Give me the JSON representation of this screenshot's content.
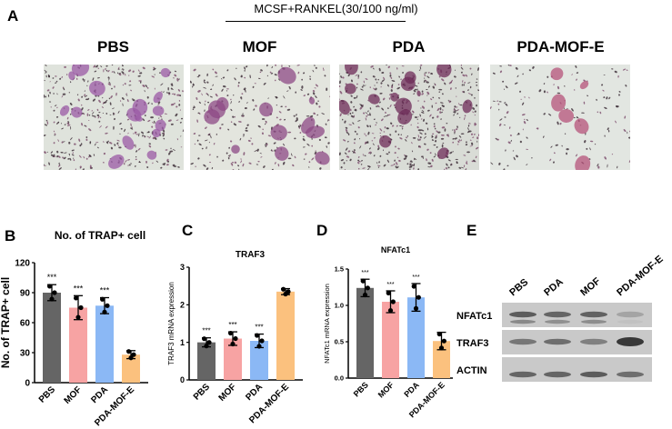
{
  "panel_a": {
    "letter": "A",
    "condition": "MCSF+RANKEL(30/100 ng/ml)",
    "images": [
      {
        "label": "PBS",
        "bg": "#dfe3dc",
        "density": "high",
        "stain": "#9b5aa6"
      },
      {
        "label": "MOF",
        "bg": "#e3e5de",
        "density": "medium",
        "stain": "#8d4a86"
      },
      {
        "label": "PDA",
        "bg": "#d9dcd6",
        "density": "very-high",
        "stain": "#6e2c58"
      },
      {
        "label": "PDA-MOF-E",
        "bg": "#e2e6e1",
        "density": "low",
        "stain": "#b5537a"
      }
    ]
  },
  "chart_data": [
    {
      "panel": "B",
      "type": "bar",
      "title": "No. of TRAP+ cell",
      "xlabel": "",
      "ylabel": "No. of TRAP+ cell",
      "categories": [
        "PBS",
        "MOF",
        "PDA",
        "PDA-MOF-E"
      ],
      "values": [
        90,
        75,
        77,
        28
      ],
      "error": [
        8,
        12,
        8,
        4
      ],
      "significance": [
        "***",
        "***",
        "***",
        ""
      ],
      "ylim": [
        0,
        120
      ],
      "yticks": [
        "0",
        "30",
        "60",
        "90",
        "120"
      ],
      "colors": [
        "#656565",
        "#f7a3a3",
        "#8bb8f5",
        "#fbc17e"
      ],
      "grid": false
    },
    {
      "panel": "C",
      "type": "bar",
      "title": "TRAF3",
      "xlabel": "",
      "ylabel": "TRAF3 mRNA expression",
      "categories": [
        "PBS",
        "MOF",
        "PDA",
        "PDA-MOF-E"
      ],
      "values": [
        1.0,
        1.1,
        1.04,
        2.35
      ],
      "error": [
        0.12,
        0.18,
        0.18,
        0.08
      ],
      "significance": [
        "***",
        "***",
        "***",
        ""
      ],
      "ylim": [
        0,
        3
      ],
      "yticks": [
        "0",
        "1",
        "2",
        "3"
      ],
      "colors": [
        "#656565",
        "#f7a3a3",
        "#8bb8f5",
        "#fbc17e"
      ],
      "grid": false
    },
    {
      "panel": "D",
      "type": "bar",
      "title": "NFATc1",
      "xlabel": "",
      "ylabel": "NFATc1 mRNA expression",
      "categories": [
        "PBS",
        "MOF",
        "PDA",
        "PDA-MOF-E"
      ],
      "values": [
        1.24,
        1.05,
        1.11,
        0.51
      ],
      "error": [
        0.12,
        0.15,
        0.19,
        0.12
      ],
      "significance": [
        "***",
        "***",
        "***",
        ""
      ],
      "ylim": [
        0,
        1.5
      ],
      "yticks": [
        "0.0",
        "0.5",
        "1.0",
        "1.5"
      ],
      "colors": [
        "#656565",
        "#f7a3a3",
        "#8bb8f5",
        "#fbc17e"
      ],
      "grid": false
    }
  ],
  "panel_e": {
    "letter": "E",
    "lanes": [
      "PBS",
      "PDA",
      "MOF",
      "PDA-MOF-E"
    ],
    "rows": [
      {
        "label": "NFATc1",
        "intensity": [
          0.75,
          0.7,
          0.72,
          0.35
        ]
      },
      {
        "label": "TRAF3",
        "intensity": [
          0.6,
          0.65,
          0.55,
          0.95
        ]
      },
      {
        "label": "ACTIN",
        "intensity": [
          0.7,
          0.7,
          0.75,
          0.65
        ]
      }
    ]
  }
}
